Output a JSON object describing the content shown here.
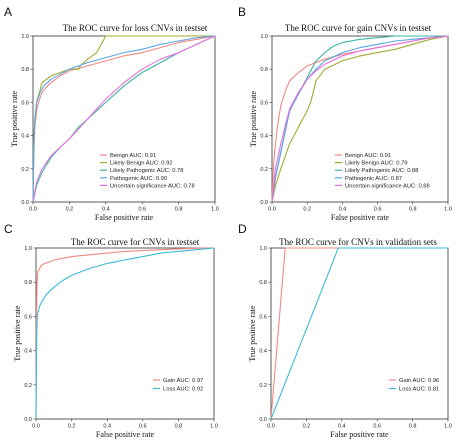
{
  "chart_data": [
    {
      "type": "line",
      "panel_label": "A",
      "title": "The ROC curve for loss CNVs in testset",
      "xlabel": "False positive rate",
      "ylabel": "True positive rate",
      "xlim": [
        0,
        1
      ],
      "ylim": [
        0,
        1
      ],
      "xticks": [
        "0.0",
        "0.2",
        "0.4",
        "0.6",
        "0.8",
        "1.0"
      ],
      "yticks": [
        "0.0",
        "0.2",
        "0.4",
        "0.6",
        "0.8",
        "1.0"
      ],
      "legend_position": "bottom-right",
      "series": [
        {
          "name": "Benign AUC: 0.91",
          "color": "#f08a84",
          "x": [
            0,
            0.005,
            0.01,
            0.02,
            0.03,
            0.05,
            0.08,
            0.1,
            0.15,
            0.2,
            0.3,
            0.4,
            0.5,
            0.6,
            0.7,
            0.8,
            0.9,
            1.0
          ],
          "y": [
            0,
            0.3,
            0.45,
            0.55,
            0.6,
            0.66,
            0.7,
            0.72,
            0.76,
            0.79,
            0.82,
            0.85,
            0.88,
            0.9,
            0.93,
            0.96,
            0.98,
            1.0
          ]
        },
        {
          "name": "Likely Benign AUC: 0.92",
          "color": "#a6a832",
          "x": [
            0,
            0.005,
            0.02,
            0.05,
            0.1,
            0.15,
            0.2,
            0.25,
            0.26,
            0.3,
            0.35,
            0.4,
            0.5,
            0.7,
            1.0
          ],
          "y": [
            0,
            0.4,
            0.6,
            0.72,
            0.76,
            0.78,
            0.8,
            0.8,
            0.82,
            0.86,
            0.9,
            1.0,
            1.0,
            1.0,
            1.0
          ]
        },
        {
          "name": "Likely Pathogenic AUC: 0.78",
          "color": "#3bb5a0",
          "x": [
            0,
            0.02,
            0.05,
            0.1,
            0.15,
            0.2,
            0.25,
            0.3,
            0.35,
            0.4,
            0.5,
            0.6,
            0.7,
            0.8,
            0.9,
            1.0
          ],
          "y": [
            0,
            0.1,
            0.18,
            0.27,
            0.33,
            0.38,
            0.45,
            0.5,
            0.55,
            0.6,
            0.7,
            0.78,
            0.84,
            0.9,
            0.95,
            1.0
          ]
        },
        {
          "name": "Pathogenic AUC: 0.90",
          "color": "#5aa7e6",
          "x": [
            0,
            0.005,
            0.01,
            0.02,
            0.04,
            0.06,
            0.1,
            0.15,
            0.2,
            0.3,
            0.4,
            0.5,
            0.6,
            0.7,
            0.8,
            0.9,
            1.0
          ],
          "y": [
            0,
            0.35,
            0.5,
            0.6,
            0.66,
            0.7,
            0.74,
            0.77,
            0.8,
            0.84,
            0.87,
            0.9,
            0.92,
            0.95,
            0.97,
            0.99,
            1.0
          ]
        },
        {
          "name": "Uncertain significance AUC: 0.78",
          "color": "#e86fe0",
          "x": [
            0,
            0.02,
            0.05,
            0.1,
            0.15,
            0.2,
            0.25,
            0.3,
            0.35,
            0.4,
            0.5,
            0.6,
            0.7,
            0.8,
            0.9,
            1.0
          ],
          "y": [
            0,
            0.12,
            0.2,
            0.28,
            0.33,
            0.38,
            0.44,
            0.5,
            0.56,
            0.62,
            0.72,
            0.8,
            0.86,
            0.9,
            0.95,
            1.0
          ]
        }
      ]
    },
    {
      "type": "line",
      "panel_label": "B",
      "title": "The ROC curve for gain CNVs in testset",
      "xlabel": "False positive rate",
      "ylabel": "True positive rate",
      "xlim": [
        0,
        1
      ],
      "ylim": [
        0,
        1
      ],
      "xticks": [
        "0.0",
        "0.2",
        "0.4",
        "0.6",
        "0.8",
        "1.0"
      ],
      "yticks": [
        "0.0",
        "0.2",
        "0.4",
        "0.6",
        "0.8",
        "1.0"
      ],
      "legend_position": "bottom-right",
      "series": [
        {
          "name": "Benign AUC: 0.91",
          "color": "#f08a84",
          "x": [
            0,
            0.01,
            0.03,
            0.05,
            0.08,
            0.1,
            0.15,
            0.2,
            0.3,
            0.4,
            0.5,
            0.6,
            0.7,
            0.8,
            0.9,
            1.0
          ],
          "y": [
            0,
            0.25,
            0.45,
            0.58,
            0.68,
            0.73,
            0.78,
            0.82,
            0.86,
            0.89,
            0.91,
            0.93,
            0.95,
            0.97,
            0.99,
            1.0
          ]
        },
        {
          "name": "Likely Benign AUC: 0.79",
          "color": "#a6a832",
          "x": [
            0,
            0.02,
            0.05,
            0.1,
            0.15,
            0.2,
            0.22,
            0.25,
            0.3,
            0.4,
            0.5,
            0.6,
            0.7,
            0.8,
            0.9,
            1.0
          ],
          "y": [
            0,
            0.1,
            0.2,
            0.35,
            0.45,
            0.55,
            0.6,
            0.73,
            0.8,
            0.85,
            0.88,
            0.9,
            0.92,
            0.95,
            0.98,
            1.0
          ]
        },
        {
          "name": "Likely Pathogenic AUC: 0.88",
          "color": "#3bb5a0",
          "x": [
            0,
            0.02,
            0.05,
            0.08,
            0.1,
            0.15,
            0.2,
            0.25,
            0.3,
            0.35,
            0.4,
            0.5,
            0.6,
            0.7,
            0.8,
            1.0
          ],
          "y": [
            0,
            0.15,
            0.3,
            0.45,
            0.55,
            0.65,
            0.75,
            0.85,
            0.9,
            0.94,
            0.96,
            0.98,
            0.99,
            1.0,
            1.0,
            1.0
          ]
        },
        {
          "name": "Pathogenic AUC: 0.87",
          "color": "#5aa7e6",
          "x": [
            0,
            0.02,
            0.05,
            0.08,
            0.1,
            0.15,
            0.2,
            0.25,
            0.3,
            0.4,
            0.5,
            0.6,
            0.7,
            0.8,
            0.9,
            1.0
          ],
          "y": [
            0,
            0.15,
            0.3,
            0.45,
            0.55,
            0.65,
            0.74,
            0.8,
            0.85,
            0.9,
            0.93,
            0.95,
            0.97,
            0.98,
            0.99,
            1.0
          ]
        },
        {
          "name": "Uncertain significance AUC: 0.88",
          "color": "#e86fe0",
          "x": [
            0,
            0.02,
            0.05,
            0.08,
            0.1,
            0.15,
            0.2,
            0.25,
            0.3,
            0.4,
            0.5,
            0.6,
            0.7,
            0.8,
            0.9,
            1.0
          ],
          "y": [
            0,
            0.2,
            0.35,
            0.48,
            0.56,
            0.66,
            0.74,
            0.79,
            0.83,
            0.88,
            0.91,
            0.93,
            0.95,
            0.97,
            0.99,
            1.0
          ]
        }
      ]
    },
    {
      "type": "line",
      "panel_label": "C",
      "title": "The ROC curve for CNVs in testset",
      "xlabel": "False positive rate",
      "ylabel": "True positive rate",
      "xlim": [
        0,
        1
      ],
      "ylim": [
        0,
        1
      ],
      "xticks": [
        "0.0",
        "0.2",
        "0.4",
        "0.6",
        "0.8",
        "1.0"
      ],
      "yticks": [
        "0.0",
        "0.2",
        "0.4",
        "0.6",
        "0.8",
        "1.0"
      ],
      "legend_position": "bottom-right",
      "series": [
        {
          "name": "Gain AUC: 0.97",
          "color": "#f08a84",
          "x": [
            0,
            0.003,
            0.006,
            0.01,
            0.02,
            0.03,
            0.05,
            0.08,
            0.1,
            0.15,
            0.2,
            0.3,
            0.4,
            0.5,
            0.6,
            0.7,
            0.8,
            0.9,
            1.0
          ],
          "y": [
            0,
            0.6,
            0.8,
            0.86,
            0.88,
            0.9,
            0.91,
            0.92,
            0.93,
            0.94,
            0.95,
            0.96,
            0.97,
            0.98,
            0.985,
            0.99,
            0.995,
            0.998,
            1.0
          ]
        },
        {
          "name": "Loss AUC: 0.92",
          "color": "#3bbcd6",
          "x": [
            0,
            0.003,
            0.006,
            0.01,
            0.02,
            0.04,
            0.06,
            0.08,
            0.1,
            0.15,
            0.2,
            0.3,
            0.4,
            0.5,
            0.6,
            0.7,
            0.8,
            0.9,
            1.0
          ],
          "y": [
            0,
            0.4,
            0.58,
            0.62,
            0.66,
            0.7,
            0.73,
            0.75,
            0.77,
            0.81,
            0.84,
            0.88,
            0.91,
            0.93,
            0.95,
            0.97,
            0.98,
            0.99,
            1.0
          ]
        }
      ]
    },
    {
      "type": "line",
      "panel_label": "D",
      "title": "The ROC curve for CNVs in validation sets",
      "xlabel": "False positive rate",
      "ylabel": "True positive rate",
      "xlim": [
        0,
        1
      ],
      "ylim": [
        0,
        1
      ],
      "xticks": [
        "0.0",
        "0.2",
        "0.4",
        "0.6",
        "0.8",
        "1.0"
      ],
      "yticks": [
        "0.0",
        "0.2",
        "0.4",
        "0.6",
        "0.8",
        "1.0"
      ],
      "legend_position": "bottom-right",
      "series": [
        {
          "name": "Gain AUC: 0.96",
          "color": "#f08a84",
          "x": [
            0,
            0.08,
            1.0
          ],
          "y": [
            0,
            1.0,
            1.0
          ]
        },
        {
          "name": "Loss AUC: 0.81",
          "color": "#3bbcd6",
          "x": [
            0,
            0.38,
            1.0
          ],
          "y": [
            0,
            1.0,
            1.0
          ]
        }
      ]
    }
  ]
}
